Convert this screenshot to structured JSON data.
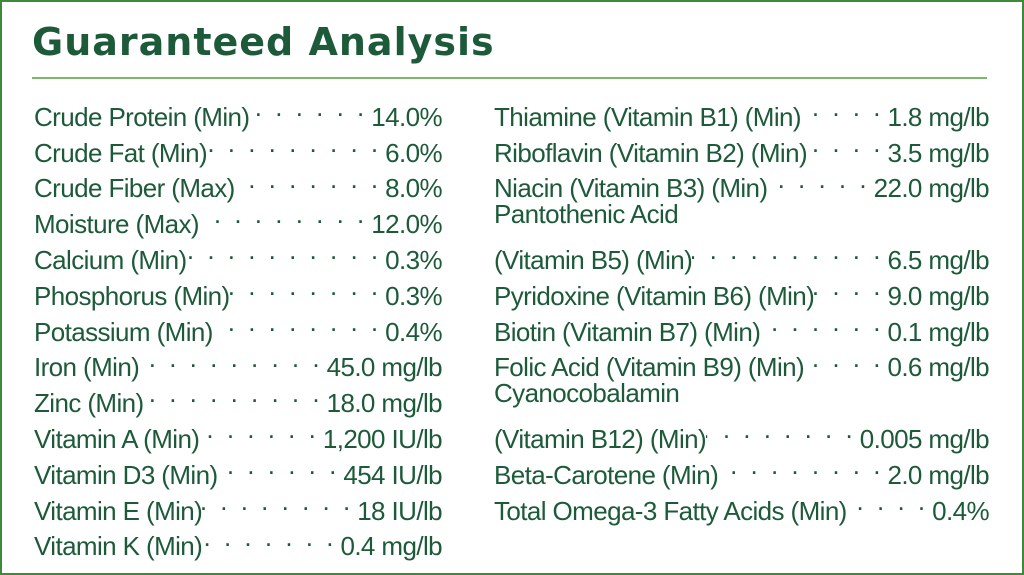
{
  "title": "Guaranteed Analysis",
  "colors": {
    "border": "#3f8a3a",
    "text": "#1d5a3a",
    "rule": "#7ab86a"
  },
  "left_column": [
    {
      "label": "Crude Protein (Min)",
      "value": "14.0%"
    },
    {
      "label": "Crude Fat (Min)",
      "value": "6.0%"
    },
    {
      "label": "Crude Fiber (Max)",
      "value": "8.0%"
    },
    {
      "label": "Moisture (Max)",
      "value": "12.0%"
    },
    {
      "label": "Calcium (Min)",
      "value": "0.3%"
    },
    {
      "label": "Phosphorus (Min)",
      "value": "0.3%"
    },
    {
      "label": "Potassium (Min)",
      "value": "0.4%"
    },
    {
      "label": "Iron (Min)",
      "value": "45.0 mg/lb"
    },
    {
      "label": "Zinc (Min)",
      "value": "18.0 mg/lb"
    },
    {
      "label": "Vitamin A (Min)",
      "value": "1,200 IU/lb"
    },
    {
      "label": "Vitamin D3 (Min)",
      "value": "454 IU/lb"
    },
    {
      "label": "Vitamin E (Min)",
      "value": "18 IU/lb"
    },
    {
      "label": "Vitamin K (Min)",
      "value": "0.4 mg/lb"
    }
  ],
  "right_column": [
    {
      "label": "Thiamine (Vitamin B1) (Min)",
      "value": "1.8 mg/lb"
    },
    {
      "label": "Riboflavin (Vitamin B2) (Min)",
      "value": "3.5 mg/lb"
    },
    {
      "label": "Niacin (Vitamin B3) (Min)",
      "value": "22.0 mg/lb"
    },
    {
      "label": "Pantothenic Acid",
      "value": ""
    },
    {
      "label": "(Vitamin B5) (Min)",
      "value": "6.5 mg/lb"
    },
    {
      "label": "Pyridoxine (Vitamin B6) (Min)",
      "value": "9.0 mg/lb"
    },
    {
      "label": "Biotin (Vitamin B7) (Min)",
      "value": "0.1 mg/lb"
    },
    {
      "label": "Folic Acid (Vitamin B9) (Min)",
      "value": "0.6 mg/lb"
    },
    {
      "label": "Cyanocobalamin",
      "value": ""
    },
    {
      "label": "(Vitamin B12) (Min)",
      "value": "0.005 mg/lb"
    },
    {
      "label": "Beta-Carotene (Min)",
      "value": "2.0 mg/lb"
    },
    {
      "label": "Total Omega-3 Fatty Acids (Min)",
      "value": "0.4%"
    }
  ]
}
